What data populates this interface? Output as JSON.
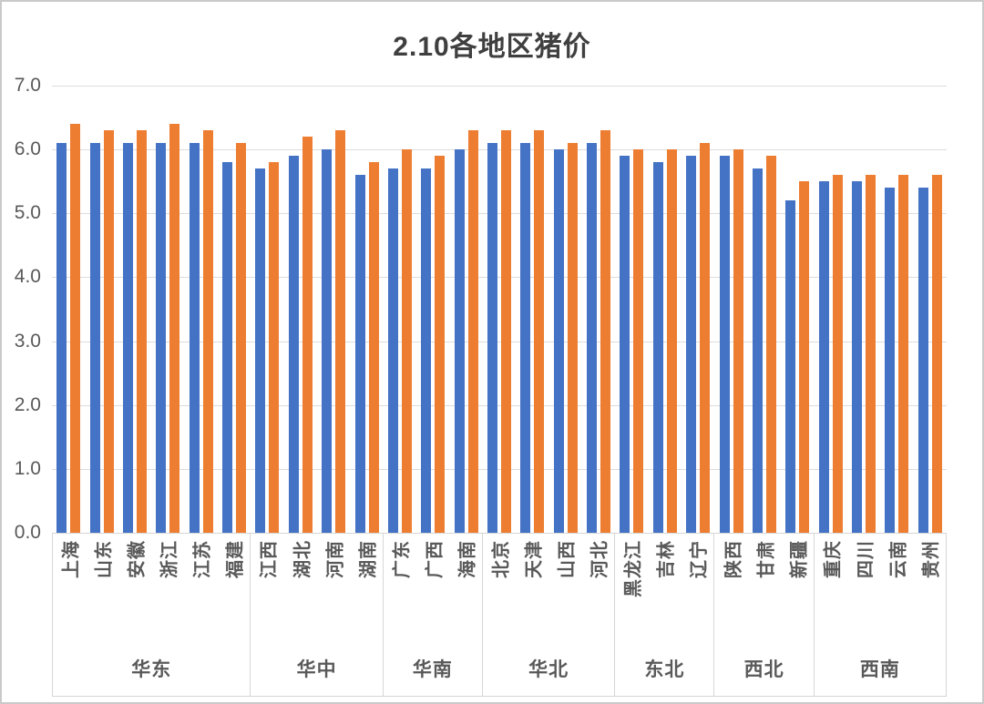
{
  "title": "2.10各地区猪价",
  "colors": {
    "series1_blue": "#4472C4",
    "series2_orange": "#ED7D31",
    "title_text": "#3F3F3F",
    "axis_text": "#595959",
    "gridline": "#DCDCDC",
    "table_border": "#D6D6D6"
  },
  "chart_data": {
    "type": "bar",
    "title": "2.10各地区猪价",
    "xlabel": "",
    "ylabel": "",
    "ylim": [
      0,
      7
    ],
    "yticks": [
      "0.0",
      "1.0",
      "2.0",
      "3.0",
      "4.0",
      "5.0",
      "6.0",
      "7.0"
    ],
    "grid": true,
    "legend": "none",
    "series_colors": [
      "#4472C4",
      "#ED7D31"
    ],
    "groups": [
      {
        "region": "华东",
        "provinces": [
          "上海",
          "山东",
          "安徽",
          "浙江",
          "江苏",
          "福建"
        ],
        "series1": [
          6.1,
          6.1,
          6.1,
          6.1,
          6.1,
          5.8
        ],
        "series2": [
          6.4,
          6.3,
          6.3,
          6.4,
          6.3,
          6.1
        ]
      },
      {
        "region": "华中",
        "provinces": [
          "江西",
          "湖北",
          "河南",
          "湖南"
        ],
        "series1": [
          5.7,
          5.9,
          6.0,
          5.6
        ],
        "series2": [
          5.8,
          6.2,
          6.3,
          5.8
        ]
      },
      {
        "region": "华南",
        "provinces": [
          "广东",
          "广西",
          "海南"
        ],
        "series1": [
          5.7,
          5.7,
          6.0
        ],
        "series2": [
          6.0,
          5.9,
          6.3
        ]
      },
      {
        "region": "华北",
        "provinces": [
          "北京",
          "天津",
          "山西",
          "河北"
        ],
        "series1": [
          6.1,
          6.1,
          6.0,
          6.1
        ],
        "series2": [
          6.3,
          6.3,
          6.1,
          6.3
        ]
      },
      {
        "region": "东北",
        "provinces": [
          "黑龙江",
          "吉林",
          "辽宁"
        ],
        "series1": [
          5.9,
          5.8,
          5.9
        ],
        "series2": [
          6.0,
          6.0,
          6.1
        ]
      },
      {
        "region": "西北",
        "provinces": [
          "陕西",
          "甘肃",
          "新疆"
        ],
        "series1": [
          5.9,
          5.7,
          5.2
        ],
        "series2": [
          6.0,
          5.9,
          5.5
        ]
      },
      {
        "region": "西南",
        "provinces": [
          "重庆",
          "四川",
          "云南",
          "贵州"
        ],
        "series1": [
          5.5,
          5.5,
          5.4,
          5.4
        ],
        "series2": [
          5.6,
          5.6,
          5.6,
          5.6
        ]
      }
    ]
  }
}
